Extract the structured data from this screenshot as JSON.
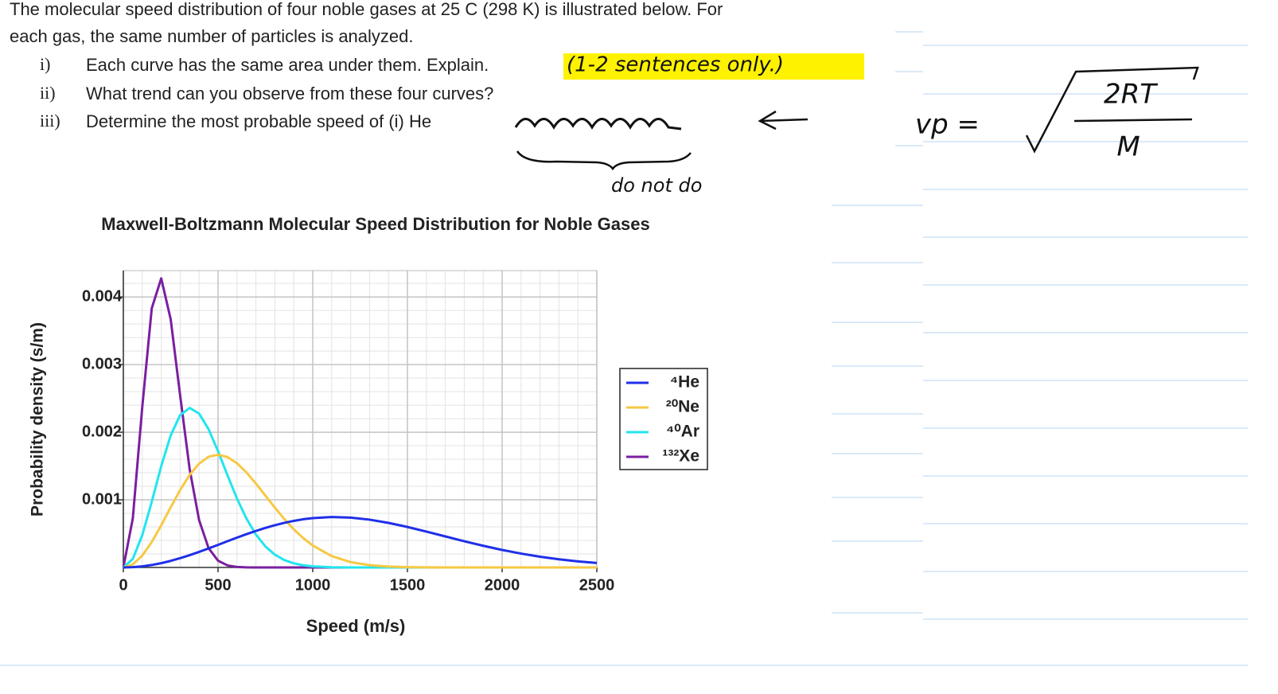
{
  "question": {
    "intro": [
      "The molecular speed distribution of four noble gases at 25 C (298 K) is illustrated below. For",
      "each gas, the same number of particles is analyzed."
    ],
    "items": [
      {
        "label": "i)",
        "text": "Each curve has the same area under them. Explain."
      },
      {
        "label": "ii)",
        "text": "What trend can you observe from these four curves?"
      },
      {
        "label": "iii)",
        "text": "Determine the most probable speed of (i) He"
      }
    ]
  },
  "handwriting": {
    "note": "(1-2 sentences only.)",
    "skip": "do not do",
    "formula_lhs": "vp =",
    "formula_numerator": "2RT",
    "formula_denominator": "M"
  },
  "chart_data": {
    "type": "line",
    "title": "Maxwell-Boltzmann Molecular Speed Distribution for Noble Gases",
    "x_label": "Speed (m/s)",
    "y_label": "Probability density (s/m)",
    "x": [
      0,
      50,
      100,
      150,
      200,
      250,
      300,
      350,
      400,
      450,
      500,
      550,
      600,
      650,
      700,
      750,
      800,
      850,
      900,
      950,
      1000,
      1100,
      1200,
      1300,
      1400,
      1500,
      1600,
      1700,
      1800,
      1900,
      2000,
      2100,
      2200,
      2300,
      2400,
      2500
    ],
    "series": [
      {
        "name": "⁴He",
        "color": "#1f2fe8",
        "values": [
          0,
          4.1e-06,
          1.62e-05,
          3.62e-05,
          6.34e-05,
          9.73e-05,
          0.000137,
          0.000182,
          0.00023,
          0.000282,
          0.000334,
          0.000388,
          0.000441,
          0.000492,
          0.00054,
          0.000585,
          0.000625,
          0.00066,
          0.000689,
          0.000713,
          0.00073,
          0.000746,
          0.000737,
          0.000707,
          0.000659,
          0.000599,
          0.00053,
          0.000459,
          0.000388,
          0.000321,
          0.000259,
          0.000205,
          0.000159,
          0.000121,
          9.02e-05,
          6.59e-05
        ]
      },
      {
        "name": "²⁰Ne",
        "color": "#f7c843",
        "values": [
          0,
          4.53e-05,
          0.000176,
          0.000376,
          0.000623,
          0.000889,
          0.001145,
          0.001367,
          0.001535,
          0.001637,
          0.001668,
          0.001633,
          0.001541,
          0.001406,
          0.001241,
          0.001063,
          0.000885,
          0.000716,
          0.000564,
          0.000433,
          0.000324,
          0.000168,
          7.89e-05,
          3.38e-05,
          1.32e-05,
          4.7e-06,
          1.5e-06,
          0,
          0,
          0,
          0,
          0,
          0,
          0,
          0,
          0
        ]
      },
      {
        "name": "⁴⁰Ar",
        "color": "#22e5ef",
        "values": [
          0,
          0.000127,
          0.000477,
          0.000971,
          0.001499,
          0.001953,
          0.002253,
          0.002359,
          0.002276,
          0.002044,
          0.001719,
          0.001363,
          0.001019,
          0.000723,
          0.000486,
          0.000311,
          0.000189,
          0.00011,
          6.07e-05,
          3.2e-05,
          1.61e-05,
          3.6e-06,
          0,
          0,
          0,
          0,
          0,
          0,
          0,
          0,
          0,
          0,
          0,
          0,
          0,
          0
        ]
      },
      {
        "name": "¹³²Xe",
        "color": "#7a1fa0",
        "values": [
          0,
          0.000726,
          0.002376,
          0.003832,
          0.004275,
          0.00367,
          0.002542,
          0.001456,
          0.0007,
          0.000286,
          0.0001,
          3e-05,
          7.7e-06,
          1.7e-06,
          0,
          0,
          0,
          0,
          0,
          0,
          0,
          0,
          0,
          0,
          0,
          0,
          0,
          0,
          0,
          0,
          0,
          0,
          0,
          0,
          0,
          0
        ]
      }
    ],
    "xlim": [
      0,
      2500
    ],
    "ylim": [
      0,
      0.00439
    ],
    "xticks": [
      0,
      500,
      1000,
      1500,
      2000,
      2500
    ],
    "yticks": [
      0.001,
      0.002,
      0.003,
      0.004
    ],
    "xminorticks": [
      100,
      200,
      300,
      400,
      600,
      700,
      800,
      900,
      1100,
      1200,
      1300,
      1400,
      1600,
      1700,
      1800,
      1900,
      2100,
      2200,
      2300,
      2400
    ],
    "yminorticks": [
      0.0002,
      0.0004,
      0.0006,
      0.0008,
      0.0012,
      0.0014,
      0.0016,
      0.0018,
      0.0022,
      0.0024,
      0.0026,
      0.0028,
      0.0032,
      0.0034,
      0.0036,
      0.0038,
      0.0042
    ],
    "grid": true,
    "legend": "right"
  }
}
